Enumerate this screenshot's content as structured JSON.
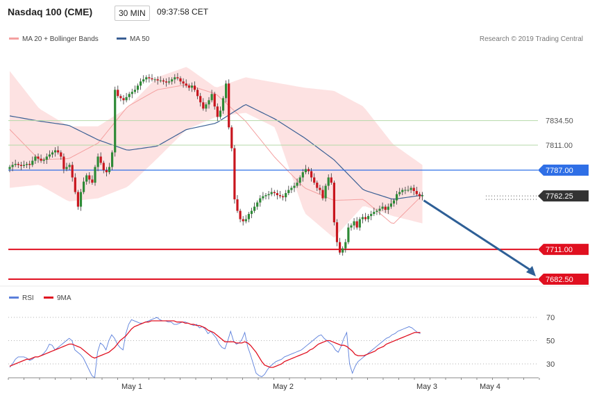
{
  "header": {
    "title": "Nasdaq 100 (CME)",
    "interval": "30 MIN",
    "time": "09:37:58 CET"
  },
  "legend": {
    "ma20_label": "MA 20 + Bollinger Bands",
    "ma50_label": "MA 50",
    "credit": "Research © 2019 Trading Central",
    "rsi_label": "RSI",
    "ma9_label": "9MA"
  },
  "colors": {
    "bull": "#2e8a36",
    "bear": "#c8161e",
    "band_fill": "#fde2e2",
    "ma20": "#f4a0a0",
    "ma50": "#3a5f94",
    "resistance_green": "#b5d9a8",
    "pivot_blue": "#2f6fe6",
    "support_red": "#e01020",
    "price_tag": "#333333",
    "rsi_line": "#5b7fdb",
    "rsi_ma": "#e01020",
    "arrow": "#2e5f96"
  },
  "chart_data": [
    {
      "type": "candlestick",
      "title": "Nasdaq 100 (CME)",
      "interval": "30 MIN",
      "y_levels": [
        {
          "value": 7834.5,
          "label": "7834.50",
          "kind": "resistance"
        },
        {
          "value": 7811.0,
          "label": "7811.00",
          "kind": "resistance"
        },
        {
          "value": 7787.0,
          "label": "7787.00",
          "kind": "pivot"
        },
        {
          "value": 7762.25,
          "label": "7762.25",
          "kind": "last_price"
        },
        {
          "value": 7711.0,
          "label": "7711.00",
          "kind": "support"
        },
        {
          "value": 7682.5,
          "label": "7682.50",
          "kind": "support"
        }
      ],
      "x_labels": [
        "May 1",
        "May 2",
        "May 3",
        "May 4"
      ],
      "ylim": [
        7680,
        7893
      ],
      "closes": [
        7790,
        7792,
        7793,
        7792,
        7791,
        7792,
        7793,
        7792,
        7796,
        7800,
        7798,
        7796,
        7797,
        7800,
        7802,
        7804,
        7806,
        7804,
        7800,
        7788,
        7790,
        7792,
        7780,
        7766,
        7752,
        7766,
        7776,
        7782,
        7778,
        7775,
        7790,
        7800,
        7794,
        7787,
        7785,
        7790,
        7804,
        7864,
        7858,
        7856,
        7854,
        7857,
        7860,
        7862,
        7864,
        7868,
        7872,
        7874,
        7876,
        7875,
        7874,
        7874,
        7873,
        7873,
        7872,
        7871,
        7872,
        7874,
        7876,
        7875,
        7872,
        7870,
        7868,
        7866,
        7868,
        7864,
        7858,
        7852,
        7846,
        7850,
        7854,
        7860,
        7848,
        7838,
        7844,
        7856,
        7870,
        7828,
        7808,
        7759,
        7748,
        7740,
        7738,
        7740,
        7745,
        7748,
        7752,
        7756,
        7760,
        7762,
        7763,
        7764,
        7766,
        7765,
        7763,
        7762,
        7761,
        7765,
        7768,
        7770,
        7772,
        7775,
        7780,
        7785,
        7788,
        7786,
        7780,
        7775,
        7770,
        7768,
        7760,
        7772,
        7780,
        7775,
        7737,
        7718,
        7708,
        7712,
        7718,
        7732,
        7734,
        7738,
        7732,
        7740,
        7742,
        7740,
        7743,
        7745,
        7747,
        7748,
        7750,
        7752,
        7749,
        7752,
        7755,
        7758,
        7764,
        7766,
        7768,
        7768,
        7768,
        7770,
        7767,
        7764,
        7762,
        7763
      ],
      "ma20_upper_sample": [
        7882,
        7846,
        7829,
        7829,
        7847,
        7876,
        7886,
        7866,
        7876,
        7871,
        7866,
        7863,
        7848,
        7812,
        7792
      ],
      "ma20_lower_sample": [
        7770,
        7773,
        7757,
        7760,
        7771,
        7798,
        7826,
        7838,
        7842,
        7828,
        7746,
        7722,
        7753,
        7743,
        7736
      ],
      "ma20_sample": [
        7826,
        7797,
        7798,
        7813,
        7848,
        7864,
        7869,
        7860,
        7834,
        7799,
        7770,
        7758,
        7759,
        7735,
        7763
      ],
      "ma50_sample": [
        7839,
        7834,
        7830,
        7816,
        7806,
        7810,
        7826,
        7832,
        7850,
        7836,
        7818,
        7797,
        7768,
        7759,
        7763
      ]
    },
    {
      "type": "line",
      "title": "RSI",
      "y_ticks": [
        70,
        50,
        30
      ],
      "ylim": [
        15,
        80
      ],
      "series": [
        {
          "name": "RSI",
          "values": [
            27,
            30,
            34,
            36,
            36,
            36,
            35,
            33,
            34,
            36,
            36,
            37,
            39,
            42,
            47,
            46,
            42,
            44,
            46,
            48,
            50,
            52,
            50,
            42,
            40,
            38,
            35,
            30,
            25,
            20,
            18,
            40,
            48,
            46,
            42,
            50,
            55,
            52,
            47,
            44,
            42,
            56,
            64,
            68,
            67,
            66,
            65,
            65,
            66,
            67,
            68,
            69,
            70,
            68,
            67,
            67,
            66,
            66,
            64,
            64,
            65,
            66,
            66,
            65,
            64,
            63,
            64,
            61,
            62,
            60,
            56,
            58,
            55,
            52,
            47,
            44,
            43,
            50,
            58,
            50,
            47,
            48,
            51,
            57,
            45,
            38,
            30,
            22,
            20,
            19,
            21,
            25,
            28,
            30,
            32,
            33,
            34,
            36,
            37,
            38,
            39,
            40,
            41,
            42,
            44,
            46,
            48,
            50,
            52,
            54,
            55,
            52,
            50,
            48,
            46,
            42,
            40,
            45,
            52,
            57,
            30,
            22,
            28,
            32,
            34,
            36,
            38,
            40,
            42,
            44,
            46,
            48,
            50,
            52,
            53,
            55,
            56,
            58,
            59,
            60,
            61,
            62,
            61,
            59,
            57,
            56
          ]
        },
        {
          "name": "9MA",
          "values": [
            28,
            29,
            30,
            31,
            32,
            33,
            34,
            34,
            35,
            36,
            36,
            37,
            38,
            39,
            40,
            41,
            42,
            43,
            44,
            45,
            46,
            47,
            47,
            46,
            45,
            44,
            42,
            40,
            38,
            36,
            35,
            36,
            37,
            38,
            39,
            40,
            42,
            44,
            47,
            50,
            52,
            54,
            57,
            60,
            62,
            63,
            64,
            65,
            66,
            66,
            67,
            67,
            67,
            67,
            67,
            67,
            67,
            67,
            67,
            66,
            66,
            66,
            65,
            65,
            64,
            64,
            63,
            63,
            62,
            61,
            59,
            58,
            57,
            55,
            53,
            51,
            49,
            49,
            49,
            49,
            48,
            48,
            48,
            49,
            48,
            46,
            43,
            40,
            36,
            32,
            29,
            28,
            27,
            27,
            28,
            29,
            30,
            32,
            33,
            34,
            35,
            36,
            37,
            38,
            39,
            40,
            42,
            43,
            45,
            47,
            48,
            49,
            50,
            50,
            49,
            48,
            47,
            46,
            46,
            45,
            43,
            41,
            38,
            37,
            37,
            37,
            38,
            39,
            40,
            41,
            43,
            44,
            45,
            47,
            48,
            49,
            50,
            51,
            52,
            53,
            54,
            55,
            56,
            57,
            57,
            57
          ]
        }
      ]
    }
  ]
}
